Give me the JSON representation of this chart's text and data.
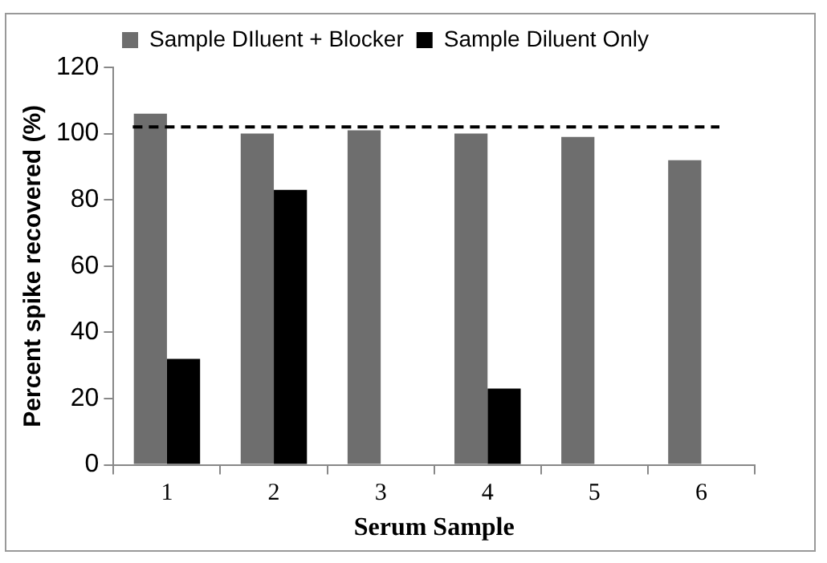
{
  "chart_data": {
    "type": "bar",
    "xlabel": "Serum Sample",
    "ylabel": "Percent spike recovered (%)",
    "categories": [
      "1",
      "2",
      "3",
      "4",
      "5",
      "6"
    ],
    "series": [
      {
        "name": "Sample DIluent + Blocker",
        "color": "#6e6e6e",
        "values": [
          106,
          100,
          101,
          100,
          99,
          92
        ]
      },
      {
        "name": "Sample Diluent Only",
        "color": "#000000",
        "values": [
          32,
          83,
          null,
          23,
          null,
          null
        ]
      }
    ],
    "ylim": [
      0,
      120
    ],
    "yticks": [
      0,
      20,
      40,
      60,
      80,
      100,
      120
    ],
    "grid": false,
    "legend": "top",
    "ref_lines": [
      {
        "axis": "y",
        "value": 102,
        "color": "#000000",
        "line_style": "dashed"
      }
    ]
  }
}
